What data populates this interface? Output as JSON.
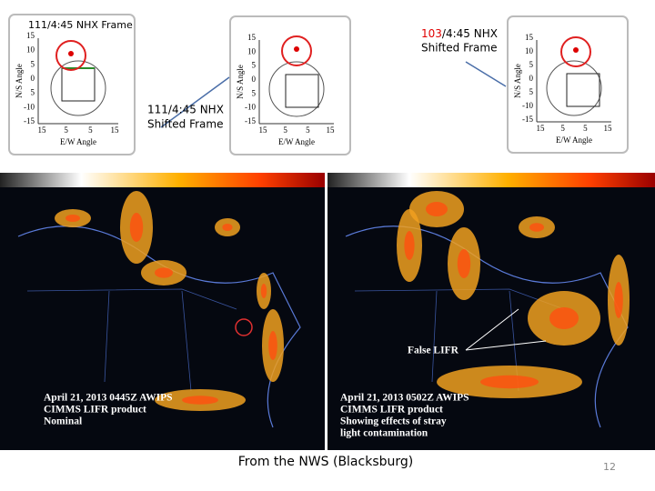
{
  "labels": {
    "frame": "111/4:45 NHX Frame",
    "shifted_a_number": "103",
    "shifted_a_rest": "/4:45 NHX",
    "shifted_a_line2": "Shifted Frame",
    "shifted_b_line1": "111/4:45 NHX",
    "shifted_b_line2": "Shifted Frame"
  },
  "axis": {
    "ylabel": "N/S Angle",
    "xlabel": "E/W Angle",
    "yticks": [
      "15",
      "10",
      "5",
      "0",
      "5",
      "-10",
      "-15"
    ],
    "xticks": [
      "15",
      "5",
      "5",
      "15"
    ]
  },
  "maps": [
    {
      "caption": [
        "April 21, 2013 0445Z AWIPS",
        "CIMMS LIFR product",
        "Nominal"
      ]
    },
    {
      "caption": [
        "April 21, 2013 0502Z AWIPS",
        "CIMMS LIFR product",
        "Showing effects of stray",
        "light contamination"
      ],
      "annotation": "False LIFR"
    }
  ],
  "footer": {
    "source": "From the NWS (Blacksburg)",
    "page": "12"
  }
}
